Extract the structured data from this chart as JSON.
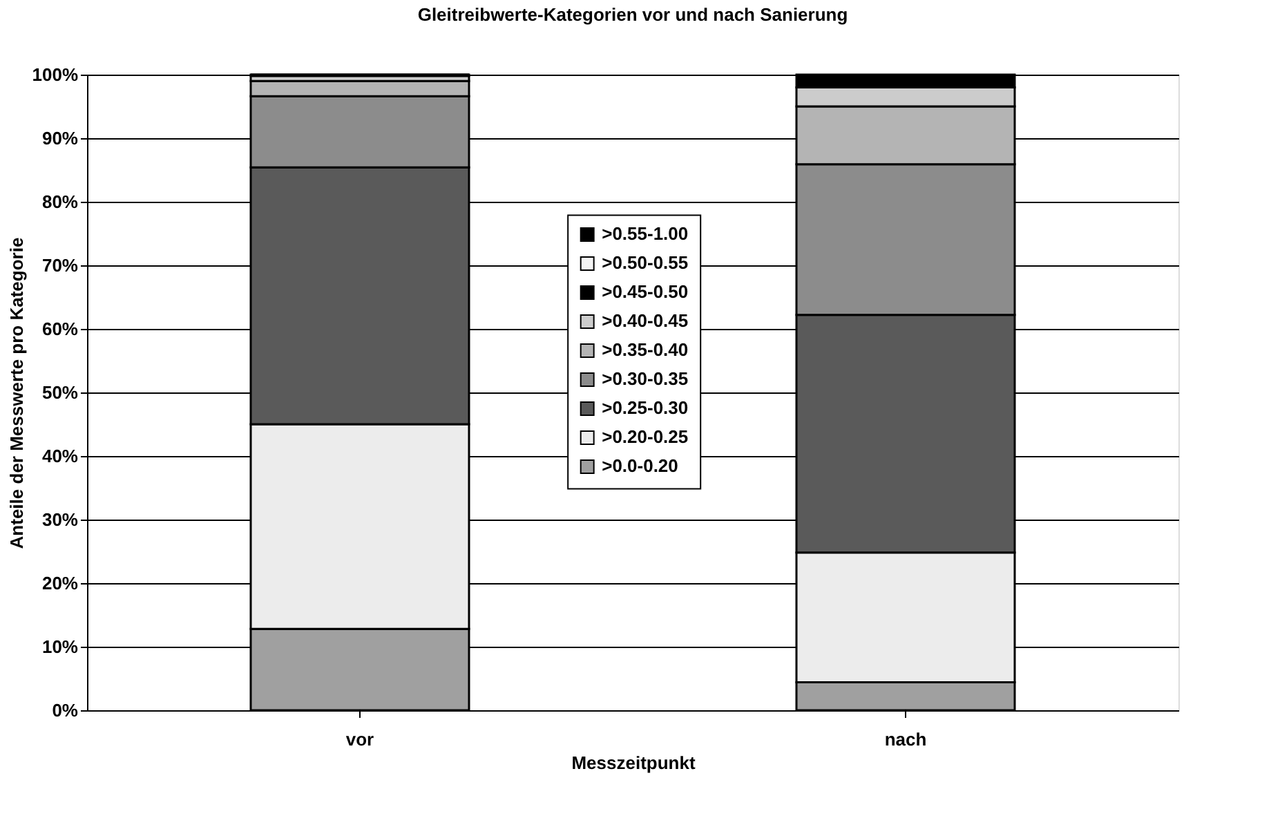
{
  "chart_data": {
    "type": "bar",
    "stacked": true,
    "title": "Gleitreibwerte-Kategorien vor und nach Sanierung",
    "xlabel": "Messzeitpunkt",
    "ylabel": "Anteile der Messwerte pro Kategorie",
    "categories": [
      "vor",
      "nach"
    ],
    "series": [
      {
        "name": ">0.0-0.20",
        "color": "#a0a0a0",
        "values": [
          12.8,
          4.4
        ]
      },
      {
        "name": ">0.20-0.25",
        "color": "#ececec",
        "values": [
          32.2,
          20.4
        ]
      },
      {
        "name": ">0.25-0.30",
        "color": "#5a5a5a",
        "values": [
          40.4,
          37.4
        ]
      },
      {
        "name": ">0.30-0.35",
        "color": "#8c8c8c",
        "values": [
          11.2,
          23.7
        ]
      },
      {
        "name": ">0.35-0.40",
        "color": "#b4b4b4",
        "values": [
          2.4,
          9.1
        ]
      },
      {
        "name": ">0.40-0.45",
        "color": "#cccccc",
        "values": [
          0.8,
          3.0
        ]
      },
      {
        "name": ">0.45-0.50",
        "color": "#000000",
        "values": [
          0,
          0
        ]
      },
      {
        "name": ">0.50-0.55",
        "color": "#f4f4f4",
        "values": [
          0.2,
          0
        ]
      },
      {
        "name": ">0.55-1.00",
        "color": "#000000",
        "values": [
          0,
          2.0
        ]
      }
    ],
    "ylim": [
      0,
      100
    ],
    "yticks": [
      {
        "value": 0,
        "label": "0%"
      },
      {
        "value": 10,
        "label": "10%"
      },
      {
        "value": 20,
        "label": "20%"
      },
      {
        "value": 30,
        "label": "30%"
      },
      {
        "value": 40,
        "label": "40%"
      },
      {
        "value": 50,
        "label": "50%"
      },
      {
        "value": 60,
        "label": "60%"
      },
      {
        "value": 70,
        "label": "70%"
      },
      {
        "value": 80,
        "label": "80%"
      },
      {
        "value": 90,
        "label": "90%"
      },
      {
        "value": 100,
        "label": "100%"
      }
    ],
    "grid": "y",
    "legend": "center"
  }
}
